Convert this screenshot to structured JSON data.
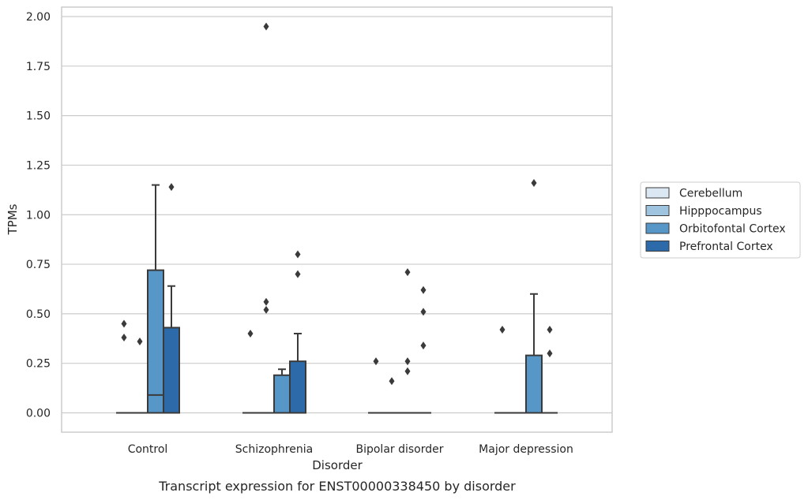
{
  "chart_data": {
    "type": "box",
    "caption": "Transcript expression for ENST00000338450 by disorder",
    "xlabel": "Disorder",
    "ylabel": "TPMs",
    "ylim": [
      -0.1,
      2.05
    ],
    "yticks": [
      "0.00",
      "0.25",
      "0.50",
      "0.75",
      "1.00",
      "1.25",
      "1.50",
      "1.75",
      "2.00"
    ],
    "ytick_values": [
      0,
      0.25,
      0.5,
      0.75,
      1.0,
      1.25,
      1.5,
      1.75,
      2.0
    ],
    "grid": true,
    "legend_placement": "right",
    "categories": [
      "Control",
      "Schizophrenia",
      "Bipolar disorder",
      "Major depression"
    ],
    "series": [
      {
        "name": "Cerebellum",
        "color": "#dbe7f3",
        "boxes": [
          {
            "q1": 0,
            "median": 0,
            "q3": 0,
            "whisker_low": 0,
            "whisker_high": 0,
            "outliers": [
              0.45,
              0.38
            ]
          },
          {
            "q1": 0,
            "median": 0,
            "q3": 0,
            "whisker_low": 0,
            "whisker_high": 0,
            "outliers": [
              0.4
            ]
          },
          {
            "q1": 0,
            "median": 0,
            "q3": 0,
            "whisker_low": 0,
            "whisker_high": 0,
            "outliers": [
              0.26
            ]
          },
          {
            "q1": 0,
            "median": 0,
            "q3": 0,
            "whisker_low": 0,
            "whisker_high": 0,
            "outliers": [
              0.42
            ]
          }
        ]
      },
      {
        "name": "Hipppocampus",
        "color": "#9fc4df",
        "boxes": [
          {
            "q1": 0,
            "median": 0,
            "q3": 0,
            "whisker_low": 0,
            "whisker_high": 0,
            "outliers": [
              0.36
            ]
          },
          {
            "q1": 0,
            "median": 0,
            "q3": 0,
            "whisker_low": 0,
            "whisker_high": 0,
            "outliers": [
              1.95,
              0.56,
              0.52
            ]
          },
          {
            "q1": 0,
            "median": 0,
            "q3": 0,
            "whisker_low": 0,
            "whisker_high": 0,
            "outliers": [
              0.16
            ]
          },
          {
            "q1": 0,
            "median": 0,
            "q3": 0,
            "whisker_low": 0,
            "whisker_high": 0,
            "outliers": []
          }
        ]
      },
      {
        "name": "Orbitofontal Cortex",
        "color": "#5797c8",
        "boxes": [
          {
            "q1": 0,
            "median": 0.09,
            "q3": 0.72,
            "whisker_low": 0,
            "whisker_high": 1.15,
            "outliers": []
          },
          {
            "q1": 0,
            "median": 0,
            "q3": 0.19,
            "whisker_low": 0,
            "whisker_high": 0.22,
            "outliers": []
          },
          {
            "q1": 0,
            "median": 0,
            "q3": 0,
            "whisker_low": 0,
            "whisker_high": 0,
            "outliers": [
              0.71,
              0.26,
              0.21
            ]
          },
          {
            "q1": 0,
            "median": 0,
            "q3": 0.29,
            "whisker_low": 0,
            "whisker_high": 0.6,
            "outliers": [
              1.16
            ]
          }
        ]
      },
      {
        "name": "Prefrontal Cortex",
        "color": "#2d6aa9",
        "boxes": [
          {
            "q1": 0,
            "median": 0,
            "q3": 0.43,
            "whisker_low": 0,
            "whisker_high": 0.64,
            "outliers": [
              1.14
            ]
          },
          {
            "q1": 0,
            "median": 0,
            "q3": 0.26,
            "whisker_low": 0,
            "whisker_high": 0.4,
            "outliers": [
              0.8,
              0.7
            ]
          },
          {
            "q1": 0,
            "median": 0,
            "q3": 0,
            "whisker_low": 0,
            "whisker_high": 0,
            "outliers": [
              0.62,
              0.51,
              0.34
            ]
          },
          {
            "q1": 0,
            "median": 0,
            "q3": 0,
            "whisker_low": 0,
            "whisker_high": 0,
            "outliers": [
              0.42,
              0.3
            ]
          }
        ]
      }
    ]
  }
}
